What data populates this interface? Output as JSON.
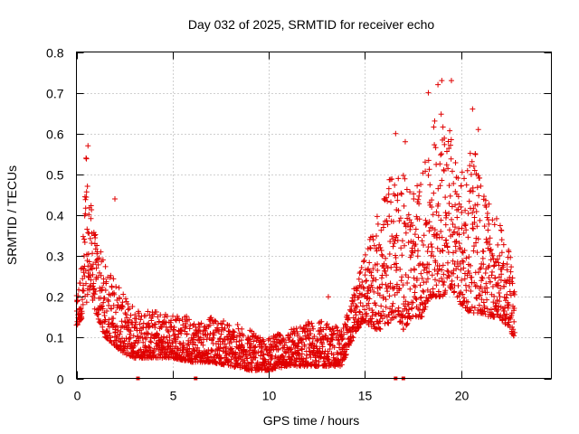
{
  "chart_data": {
    "type": "scatter",
    "title": "Day 032 of 2025, SRMTID for receiver echo",
    "xlabel": "GPS time / hours",
    "ylabel": "SRMTID / TECUs",
    "xlim": [
      0,
      24.7
    ],
    "ylim": [
      0,
      0.8
    ],
    "x_ticks": [
      0,
      5,
      10,
      15,
      20
    ],
    "x_tick_labels": [
      "0",
      "5",
      "10",
      "15",
      "20"
    ],
    "y_ticks": [
      0,
      0.1,
      0.2,
      0.3,
      0.4,
      0.5,
      0.6,
      0.7,
      0.8
    ],
    "y_tick_labels": [
      "0",
      "0.1",
      "0.2",
      "0.3",
      "0.4",
      "0.5",
      "0.6",
      "0.7",
      "0.8"
    ],
    "grid": true,
    "marker": "+",
    "series_color": "#e00000",
    "clipped_points_at_zero": [
      3.2,
      6.2,
      16.6,
      17.0
    ],
    "envelope": {
      "x": [
        0,
        0.3,
        0.5,
        0.7,
        1.0,
        1.5,
        2.0,
        2.5,
        3.0,
        4.0,
        5.0,
        6.0,
        7.0,
        8.0,
        9.0,
        9.5,
        10.0,
        11.0,
        12.0,
        13.0,
        13.8,
        14.2,
        14.6,
        15.0,
        15.5,
        16.0,
        16.5,
        17.0,
        17.5,
        18.0,
        18.5,
        19.0,
        19.5,
        20.0,
        20.5,
        21.0,
        21.5,
        22.0,
        22.5,
        22.8
      ],
      "low": [
        0.12,
        0.15,
        0.18,
        0.22,
        0.16,
        0.1,
        0.08,
        0.06,
        0.05,
        0.05,
        0.05,
        0.04,
        0.04,
        0.03,
        0.02,
        0.02,
        0.02,
        0.03,
        0.03,
        0.03,
        0.03,
        0.08,
        0.12,
        0.14,
        0.12,
        0.12,
        0.15,
        0.12,
        0.15,
        0.15,
        0.2,
        0.2,
        0.22,
        0.18,
        0.16,
        0.16,
        0.15,
        0.15,
        0.12,
        0.1
      ],
      "high": [
        0.2,
        0.3,
        0.55,
        0.45,
        0.35,
        0.28,
        0.25,
        0.2,
        0.18,
        0.17,
        0.16,
        0.15,
        0.15,
        0.14,
        0.12,
        0.1,
        0.1,
        0.12,
        0.14,
        0.14,
        0.12,
        0.18,
        0.25,
        0.3,
        0.38,
        0.45,
        0.55,
        0.5,
        0.48,
        0.5,
        0.62,
        0.7,
        0.6,
        0.5,
        0.6,
        0.5,
        0.42,
        0.38,
        0.32,
        0.22
      ]
    },
    "notable_points": [
      {
        "x": 0.6,
        "y": 0.57
      },
      {
        "x": 0.5,
        "y": 0.54
      },
      {
        "x": 19.0,
        "y": 0.73
      },
      {
        "x": 19.5,
        "y": 0.73
      },
      {
        "x": 18.8,
        "y": 0.72
      },
      {
        "x": 18.3,
        "y": 0.7
      },
      {
        "x": 20.6,
        "y": 0.66
      },
      {
        "x": 16.6,
        "y": 0.6
      },
      {
        "x": 20.9,
        "y": 0.61
      },
      {
        "x": 17.1,
        "y": 0.58
      },
      {
        "x": 2.0,
        "y": 0.44
      },
      {
        "x": 13.1,
        "y": 0.2
      }
    ],
    "point_count_estimate": 2600
  }
}
